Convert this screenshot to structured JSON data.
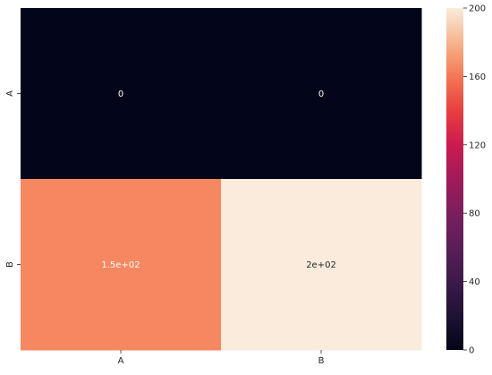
{
  "chart_data": {
    "type": "heatmap",
    "row_labels": [
      "A",
      "B"
    ],
    "col_labels": [
      "A",
      "B"
    ],
    "values": [
      [
        0,
        0
      ],
      [
        150,
        200
      ]
    ],
    "annotations": [
      [
        "0",
        "0"
      ],
      [
        "1.5e+02",
        "2e+02"
      ]
    ],
    "colorbar": {
      "min": 0,
      "max": 200,
      "ticks": [
        "0",
        "40",
        "80",
        "120",
        "160",
        "200"
      ]
    },
    "colors": {
      "low": "#03051a",
      "high": "#faebdd",
      "cell_A_A": "#03051a",
      "cell_A_B": "#03051a",
      "cell_B_A": "#f58860",
      "cell_B_B": "#faebdd"
    }
  }
}
